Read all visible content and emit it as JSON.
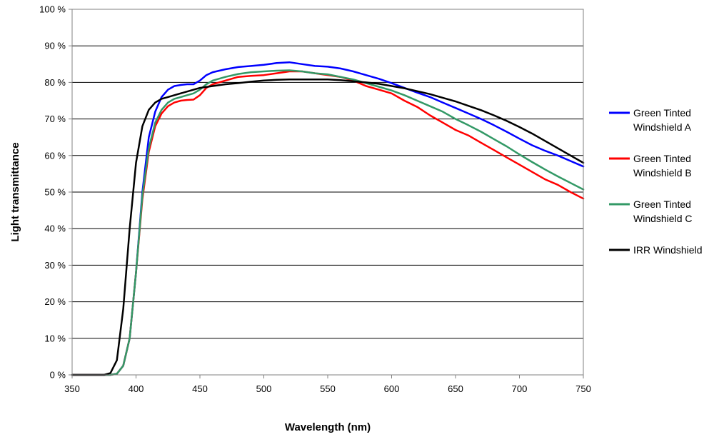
{
  "chart_data": {
    "type": "line",
    "xlabel": "Wavelength (nm)",
    "ylabel": "Light transmittance",
    "xlim": [
      350,
      750
    ],
    "ylim": [
      0,
      100
    ],
    "x_ticks": [
      "350",
      "400",
      "450",
      "500",
      "550",
      "600",
      "650",
      "700",
      "750"
    ],
    "y_ticks": [
      "0 %",
      "10 %",
      "20 %",
      "30 %",
      "40 %",
      "50 %",
      "60 %",
      "70 %",
      "80 %",
      "90 %",
      "100 %"
    ],
    "grid": "horizontal",
    "legend_position": "right",
    "series": [
      {
        "name": "Green Tinted Windshield A",
        "color": "#0000ff",
        "x": [
          350,
          380,
          385,
          390,
          395,
          400,
          405,
          410,
          415,
          420,
          425,
          430,
          435,
          440,
          445,
          450,
          455,
          460,
          470,
          480,
          490,
          500,
          510,
          520,
          530,
          540,
          550,
          560,
          570,
          580,
          590,
          600,
          610,
          620,
          630,
          640,
          650,
          660,
          670,
          680,
          690,
          700,
          710,
          720,
          730,
          740,
          750
        ],
        "y": [
          0,
          0,
          0.3,
          2.5,
          10,
          28,
          50,
          65,
          72,
          76,
          78,
          79,
          79.3,
          79.5,
          79.5,
          80.5,
          82,
          82.8,
          83.6,
          84.2,
          84.5,
          84.8,
          85.3,
          85.5,
          85,
          84.5,
          84.3,
          83.8,
          83,
          82,
          81,
          79.8,
          78.5,
          77.2,
          76,
          74.5,
          73,
          71.5,
          70,
          68.3,
          66.5,
          64.6,
          62.8,
          61.3,
          60,
          58.5,
          57
        ]
      },
      {
        "name": "Green Tinted Windshield B",
        "color": "#ff0000",
        "x": [
          350,
          380,
          385,
          390,
          395,
          400,
          405,
          410,
          415,
          420,
          425,
          430,
          435,
          440,
          445,
          450,
          455,
          460,
          470,
          480,
          490,
          500,
          510,
          520,
          530,
          540,
          550,
          560,
          570,
          580,
          590,
          600,
          610,
          620,
          630,
          640,
          650,
          660,
          670,
          680,
          690,
          700,
          710,
          720,
          730,
          740,
          750
        ],
        "y": [
          0,
          0,
          0.3,
          2.5,
          10,
          28,
          48,
          61,
          68,
          71.5,
          73.5,
          74.5,
          75,
          75.2,
          75.3,
          76.5,
          78.5,
          79.5,
          80.5,
          81.5,
          81.8,
          82,
          82.5,
          83,
          83,
          82.5,
          82,
          81.5,
          80.5,
          79,
          78,
          77,
          75,
          73.3,
          71,
          69,
          67,
          65.5,
          63.5,
          61.5,
          59.5,
          57.5,
          55.5,
          53.5,
          52,
          50,
          48.2
        ]
      },
      {
        "name": "Green Tinted Windshield C",
        "color": "#339966",
        "x": [
          350,
          380,
          385,
          390,
          395,
          400,
          405,
          410,
          415,
          420,
          425,
          430,
          435,
          440,
          445,
          450,
          455,
          460,
          470,
          480,
          490,
          500,
          510,
          520,
          530,
          540,
          550,
          560,
          570,
          580,
          590,
          600,
          610,
          620,
          630,
          640,
          650,
          660,
          670,
          680,
          690,
          700,
          710,
          720,
          730,
          740,
          750
        ],
        "y": [
          0,
          0,
          0.3,
          2.5,
          10,
          28,
          49,
          62,
          69,
          72.5,
          74.5,
          75.5,
          76,
          76.5,
          77,
          78,
          79.5,
          80.5,
          81.5,
          82.3,
          82.8,
          83,
          83.2,
          83.3,
          83,
          82.5,
          82.2,
          81.5,
          80.8,
          79.8,
          78.8,
          77.8,
          76.5,
          75,
          73.5,
          72,
          70,
          68.3,
          66.5,
          64.5,
          62.5,
          60.3,
          58.2,
          56.2,
          54.3,
          52.5,
          50.7
        ]
      },
      {
        "name": "IRR Windshield",
        "color": "#000000",
        "x": [
          350,
          375,
          380,
          385,
          390,
          395,
          400,
          405,
          410,
          415,
          420,
          425,
          430,
          440,
          450,
          460,
          470,
          480,
          490,
          500,
          510,
          520,
          530,
          540,
          550,
          560,
          570,
          580,
          590,
          600,
          610,
          620,
          630,
          640,
          650,
          660,
          670,
          680,
          690,
          700,
          710,
          720,
          730,
          740,
          750
        ],
        "y": [
          0,
          0,
          0.5,
          4,
          18,
          40,
          58,
          68,
          72.5,
          74.5,
          75.5,
          76,
          76.5,
          77.5,
          78.5,
          79,
          79.5,
          79.8,
          80.2,
          80.5,
          80.7,
          80.8,
          80.8,
          80.8,
          80.8,
          80.6,
          80.3,
          80,
          79.6,
          79,
          78.4,
          77.6,
          76.8,
          75.8,
          74.8,
          73.6,
          72.4,
          71,
          69.5,
          67.8,
          66,
          64,
          62,
          60,
          58
        ]
      }
    ]
  }
}
